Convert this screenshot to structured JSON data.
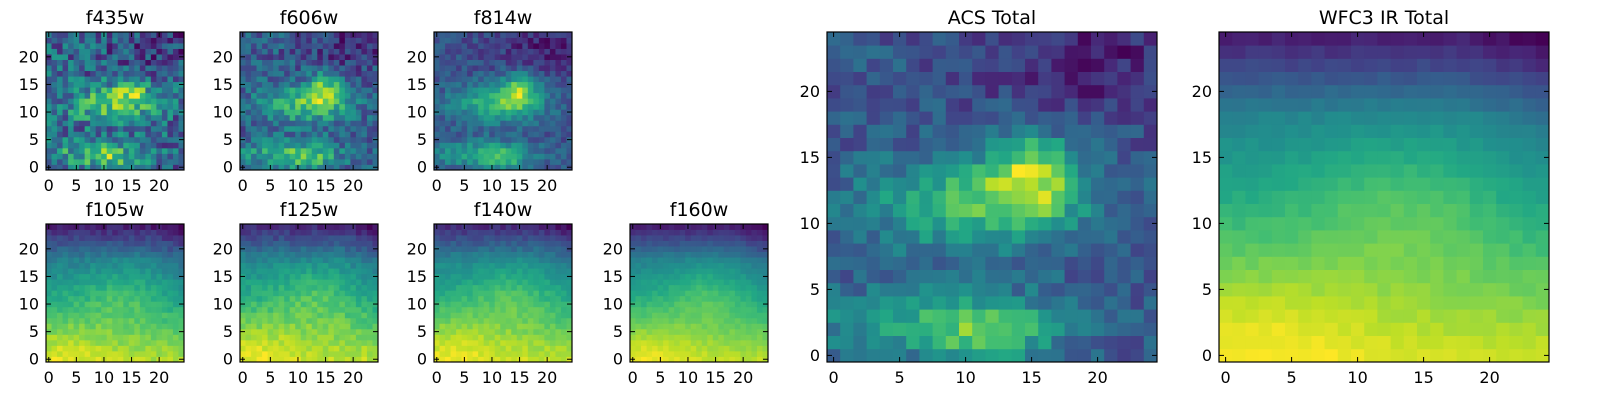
{
  "chart_data": [
    {
      "type": "heatmap",
      "title": "f435w",
      "colormap": "viridis",
      "x_ticks": [
        0,
        5,
        10,
        15,
        20
      ],
      "y_ticks": [
        0,
        5,
        10,
        15,
        20
      ],
      "xlim": [
        -0.5,
        24.5
      ],
      "ylim": [
        -0.5,
        24.5
      ],
      "grid": false,
      "peak_region": {
        "x": [
          3,
          17
        ],
        "y": [
          9,
          14
        ]
      },
      "note": "very noisy, bright band near y 10-13"
    },
    {
      "type": "heatmap",
      "title": "f606w",
      "colormap": "viridis",
      "x_ticks": [
        0,
        5,
        10,
        15,
        20
      ],
      "y_ticks": [
        0,
        5,
        10,
        15,
        20
      ],
      "xlim": [
        -0.5,
        24.5
      ],
      "ylim": [
        -0.5,
        24.5
      ],
      "grid": false
    },
    {
      "type": "heatmap",
      "title": "f814w",
      "colormap": "viridis",
      "x_ticks": [
        0,
        5,
        10,
        15,
        20
      ],
      "y_ticks": [
        0,
        5,
        10,
        15,
        20
      ],
      "xlim": [
        -0.5,
        24.5
      ],
      "ylim": [
        -0.5,
        24.5
      ],
      "grid": false
    },
    {
      "type": "heatmap",
      "title": "f105w",
      "colormap": "viridis",
      "x_ticks": [
        0,
        5,
        10,
        15,
        20
      ],
      "y_ticks": [
        0,
        5,
        10,
        15,
        20
      ],
      "xlim": [
        -0.5,
        24.5
      ],
      "ylim": [
        -0.5,
        24.5
      ],
      "grid": false
    },
    {
      "type": "heatmap",
      "title": "f125w",
      "colormap": "viridis",
      "x_ticks": [
        0,
        5,
        10,
        15,
        20
      ],
      "y_ticks": [
        0,
        5,
        10,
        15,
        20
      ],
      "xlim": [
        -0.5,
        24.5
      ],
      "ylim": [
        -0.5,
        24.5
      ],
      "grid": false
    },
    {
      "type": "heatmap",
      "title": "f140w",
      "colormap": "viridis",
      "x_ticks": [
        0,
        5,
        10,
        15,
        20
      ],
      "y_ticks": [
        0,
        5,
        10,
        15,
        20
      ],
      "xlim": [
        -0.5,
        24.5
      ],
      "ylim": [
        -0.5,
        24.5
      ],
      "grid": false
    },
    {
      "type": "heatmap",
      "title": "f160w",
      "colormap": "viridis",
      "x_ticks": [
        0,
        5,
        10,
        15,
        20
      ],
      "y_ticks": [
        0,
        5,
        10,
        15,
        20
      ],
      "xlim": [
        -0.5,
        24.5
      ],
      "ylim": [
        -0.5,
        24.5
      ],
      "grid": false
    },
    {
      "type": "heatmap",
      "title": "ACS Total",
      "colormap": "viridis",
      "x_ticks": [
        0,
        5,
        10,
        15,
        20
      ],
      "y_ticks": [
        0,
        5,
        10,
        15,
        20
      ],
      "xlim": [
        -0.5,
        24.5
      ],
      "ylim": [
        -0.5,
        24.5
      ],
      "grid": false
    },
    {
      "type": "heatmap",
      "title": "WFC3 IR Total",
      "colormap": "viridis",
      "x_ticks": [
        0,
        5,
        10,
        15,
        20
      ],
      "y_ticks": [
        0,
        5,
        10,
        15,
        20
      ],
      "xlim": [
        -0.5,
        24.5
      ],
      "ylim": [
        -0.5,
        24.5
      ],
      "grid": false
    }
  ]
}
